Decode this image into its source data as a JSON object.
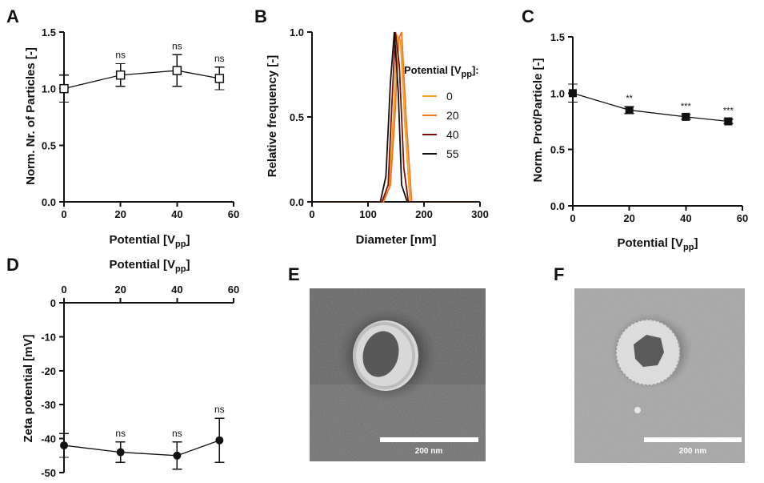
{
  "panels": {
    "A": "A",
    "B": "B",
    "C": "C",
    "D": "D",
    "E": "E",
    "F": "F"
  },
  "chart_data": [
    {
      "panel": "A",
      "type": "line",
      "xlabel": "Potential [V",
      "xlabel_sub": "pp",
      "xlabel_end": "]",
      "ylabel": "Norm. Nr. of Particles [-]",
      "x": [
        0,
        20,
        40,
        55
      ],
      "y": [
        1.0,
        1.12,
        1.16,
        1.09
      ],
      "err": [
        0.12,
        0.1,
        0.14,
        0.1
      ],
      "annotations": [
        "",
        "ns",
        "ns",
        "ns"
      ],
      "marker": "open-square",
      "xlim": [
        0,
        60
      ],
      "ylim": [
        0,
        1.5
      ],
      "xticks": [
        "0",
        "20",
        "40",
        "60"
      ],
      "yticks": [
        "0.0",
        "0.5",
        "1.0",
        "1.5"
      ]
    },
    {
      "panel": "B",
      "type": "line",
      "xlabel": "Diameter [nm]",
      "ylabel": "Relative frequency [-]",
      "xlim": [
        0,
        300
      ],
      "ylim": [
        0,
        1.0
      ],
      "xticks": [
        "0",
        "100",
        "200",
        "300"
      ],
      "yticks": [
        "0.0",
        "0.5",
        "1.0"
      ],
      "legend_title": "Potential [V",
      "legend_title_sub": "pp",
      "legend_title_end": "]:",
      "series": [
        {
          "name": "0",
          "color": "#f2a11a",
          "x": [
            0,
            125,
            138,
            146,
            152,
            158,
            166,
            175,
            300
          ],
          "y": [
            0,
            0,
            0.08,
            0.55,
            0.98,
            0.95,
            0.45,
            0,
            0
          ]
        },
        {
          "name": "20",
          "color": "#f07524",
          "x": [
            0,
            128,
            140,
            148,
            155,
            160,
            168,
            178,
            300
          ],
          "y": [
            0,
            0,
            0.1,
            0.5,
            0.96,
            1.0,
            0.5,
            0,
            0
          ]
        },
        {
          "name": "40",
          "color": "#7a1010",
          "x": [
            0,
            125,
            136,
            143,
            149,
            156,
            164,
            172,
            300
          ],
          "y": [
            0,
            0,
            0.1,
            0.6,
            1.0,
            0.8,
            0.2,
            0,
            0
          ]
        },
        {
          "name": "55",
          "color": "#111111",
          "x": [
            0,
            122,
            132,
            140,
            147,
            154,
            160,
            170,
            300
          ],
          "y": [
            0,
            0,
            0.15,
            0.7,
            1.0,
            0.65,
            0.1,
            0,
            0
          ]
        }
      ]
    },
    {
      "panel": "C",
      "type": "line",
      "xlabel": "Potential [V",
      "xlabel_sub": "pp",
      "xlabel_end": "]",
      "ylabel": "Norm. Prot/Particle [-]",
      "x": [
        0,
        20,
        40,
        55
      ],
      "y": [
        1.0,
        0.85,
        0.79,
        0.75
      ],
      "err": [
        0.08,
        0.03,
        0.02,
        0.02
      ],
      "annotations": [
        "",
        "**",
        "***",
        "***"
      ],
      "marker": "filled-square",
      "xlim": [
        0,
        60
      ],
      "ylim": [
        0,
        1.5
      ],
      "xticks": [
        "0",
        "20",
        "40",
        "60"
      ],
      "yticks": [
        "0.0",
        "0.5",
        "1.0",
        "1.5"
      ]
    },
    {
      "panel": "D",
      "type": "line",
      "xlabel": "Potential [V",
      "xlabel_sub": "pp",
      "xlabel_end": "]",
      "ylabel": "Zeta potential [mV]",
      "x": [
        0,
        20,
        40,
        55
      ],
      "y": [
        -42,
        -44,
        -45,
        -40.5
      ],
      "err": [
        3.5,
        3.0,
        4.0,
        6.5
      ],
      "annotations": [
        "",
        "ns",
        "ns",
        "ns"
      ],
      "marker": "filled-circle",
      "xlim": [
        0,
        60
      ],
      "ylim": [
        -50,
        0
      ],
      "xaxis_position": "top",
      "xticks": [
        "0",
        "20",
        "40",
        "60"
      ],
      "yticks": [
        "0",
        "-10",
        "-20",
        "-30",
        "-40",
        "-50"
      ]
    }
  ],
  "micrographs": {
    "E": {
      "scale_label": "200 nm"
    },
    "F": {
      "scale_label": "200 nm"
    }
  }
}
